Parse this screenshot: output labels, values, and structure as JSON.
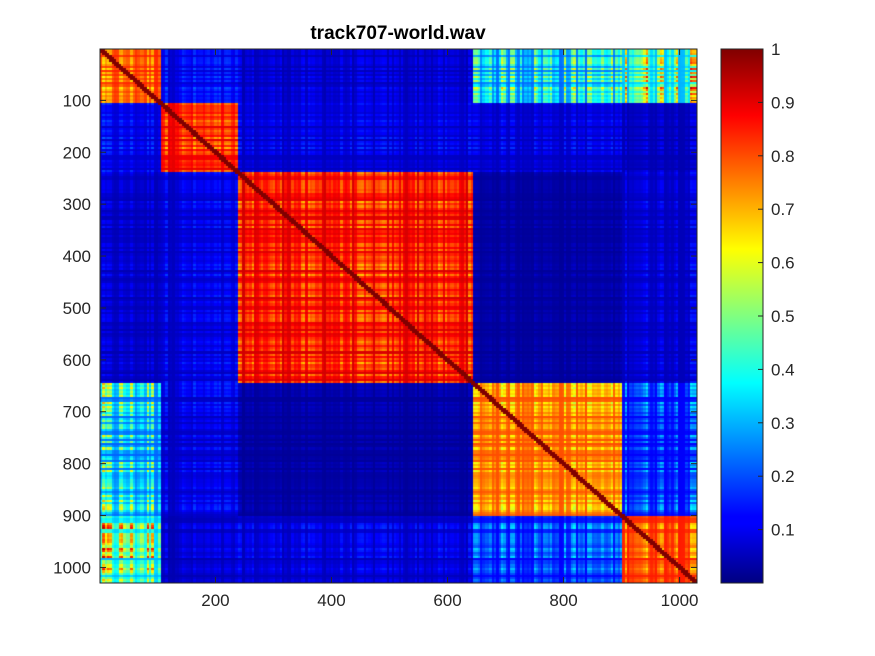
{
  "chart_data": {
    "type": "heatmap",
    "title": "track707-world.wav",
    "xlabel": "",
    "ylabel": "",
    "xlim": [
      1,
      1030
    ],
    "ylim": [
      1,
      1030
    ],
    "y_reversed": true,
    "x_ticks": [
      200,
      400,
      600,
      800,
      1000
    ],
    "y_ticks": [
      100,
      200,
      300,
      400,
      500,
      600,
      700,
      800,
      900,
      1000
    ],
    "x_tick_labels": [
      "200",
      "400",
      "600",
      "800",
      "1000"
    ],
    "y_tick_labels": [
      "100",
      "200",
      "300",
      "400",
      "500",
      "600",
      "700",
      "800",
      "900",
      "1000"
    ],
    "colormap": "jet",
    "clim": [
      0,
      1
    ],
    "colorbar_ticks": [
      0.1,
      0.2,
      0.3,
      0.4,
      0.5,
      0.6,
      0.7,
      0.8,
      0.9,
      1
    ],
    "colorbar_tick_labels": [
      "0.1",
      "0.2",
      "0.3",
      "0.4",
      "0.5",
      "0.6",
      "0.7",
      "0.8",
      "0.9",
      "1"
    ],
    "segments": [
      {
        "start": 1,
        "end": 105
      },
      {
        "start": 105,
        "end": 240
      },
      {
        "start": 240,
        "end": 645
      },
      {
        "start": 645,
        "end": 900
      },
      {
        "start": 900,
        "end": 1030
      }
    ],
    "segment_similarity": [
      [
        0.85,
        0.18,
        0.12,
        0.55,
        0.75
      ],
      [
        0.18,
        0.9,
        0.15,
        0.15,
        0.12
      ],
      [
        0.12,
        0.15,
        0.92,
        0.06,
        0.14
      ],
      [
        0.55,
        0.15,
        0.06,
        0.8,
        0.3
      ],
      [
        0.75,
        0.12,
        0.14,
        0.3,
        0.85
      ]
    ],
    "grid": false,
    "colorbar_position": "right"
  }
}
